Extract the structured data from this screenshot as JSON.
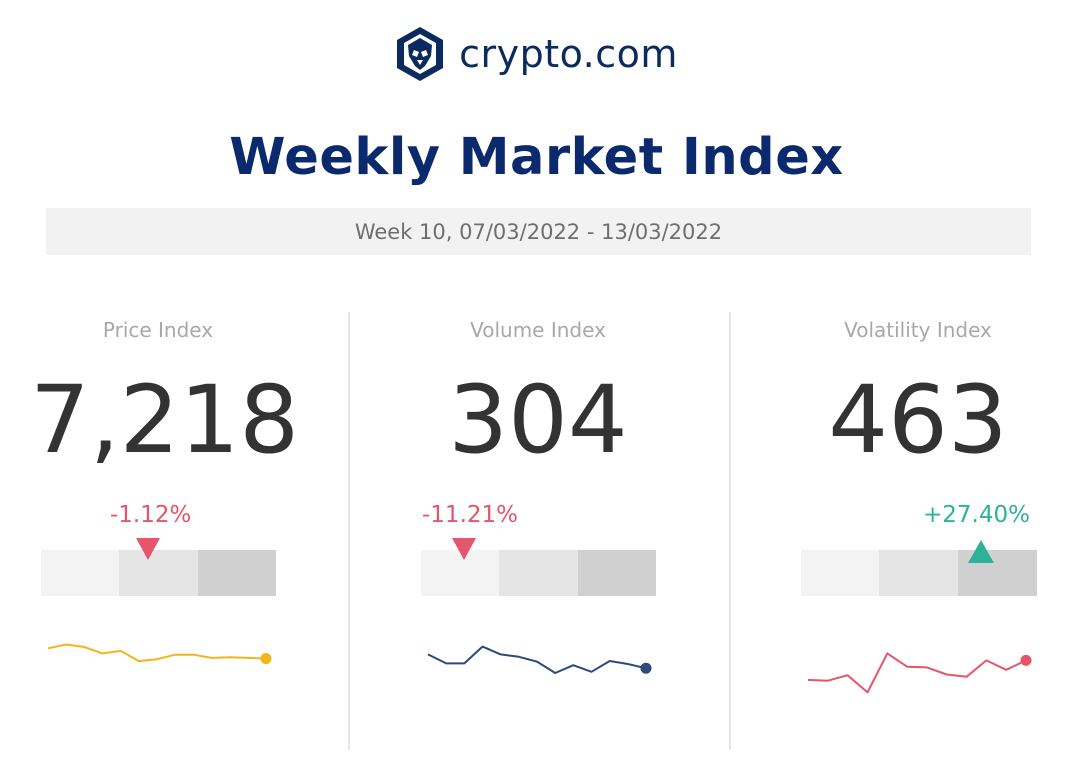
{
  "brand": {
    "name": "crypto.com",
    "logo_icon": "crypto-com-lion-shield-icon"
  },
  "title": "Weekly Market Index",
  "week_label": "Week 10, 07/03/2022 - 13/03/2022",
  "colors": {
    "navy": "#0b2a6e",
    "down": "#e5556b",
    "up": "#2bb39a",
    "price_line": "#f2b51f",
    "volume_line": "#2c4a7c",
    "volatility_line": "#e8546a"
  },
  "chart_data": [
    {
      "type": "line",
      "title": "Price Index",
      "value": "7,218",
      "change": "-1.12%",
      "direction": "down",
      "gauge_level": "middle",
      "series": [
        {
          "values": [
            62,
            68,
            64,
            54,
            58,
            42,
            45,
            52,
            52,
            47,
            48,
            47,
            46
          ]
        }
      ],
      "ylim": [
        0,
        100
      ]
    },
    {
      "type": "line",
      "title": "Volume Index",
      "value": "304",
      "change": "-11.21%",
      "direction": "down",
      "gauge_level": "low",
      "series": [
        {
          "values": [
            56,
            41,
            41,
            69,
            56,
            52,
            44,
            25,
            38,
            27,
            45,
            40,
            33
          ]
        }
      ],
      "ylim": [
        0,
        100
      ]
    },
    {
      "type": "line",
      "title": "Volatility Index",
      "value": "463",
      "change": "+27.40%",
      "direction": "up",
      "gauge_level": "high",
      "series": [
        {
          "values": [
            36,
            35,
            42,
            20,
            70,
            53,
            52,
            43,
            40,
            61,
            49,
            61
          ]
        }
      ],
      "ylim": [
        0,
        100
      ]
    }
  ]
}
